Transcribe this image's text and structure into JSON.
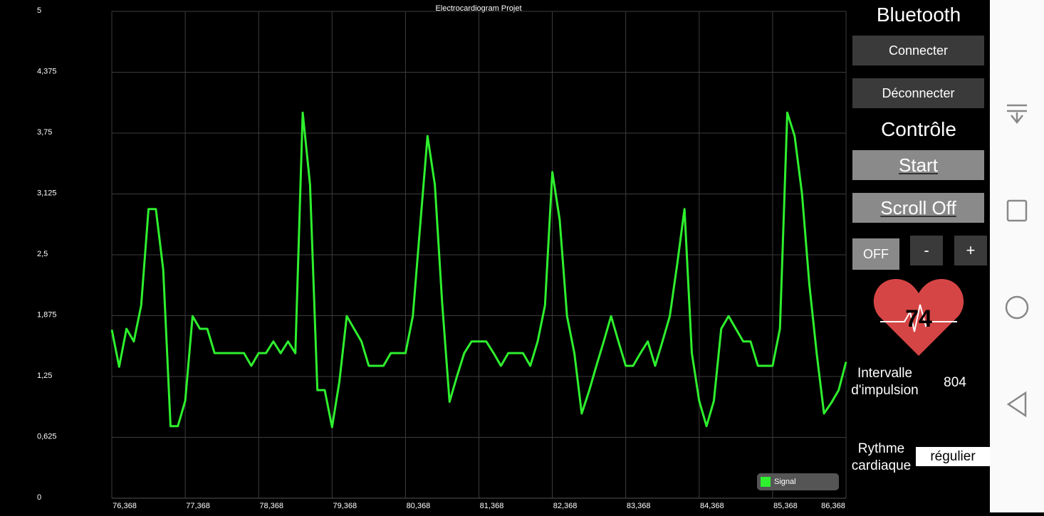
{
  "chart_data": {
    "type": "line",
    "title": "Electrocardiogram Projet",
    "x": [
      76.368,
      76.468,
      76.568,
      76.668,
      76.768,
      76.868,
      76.968,
      77.068,
      77.168,
      77.268,
      77.368,
      77.468,
      77.568,
      77.668,
      77.768,
      77.868,
      77.968,
      78.068,
      78.168,
      78.268,
      78.368,
      78.468,
      78.568,
      78.668,
      78.768,
      78.868,
      78.968,
      79.068,
      79.168,
      79.268,
      79.368,
      79.468,
      79.568,
      79.668,
      79.768,
      79.868,
      79.968,
      80.068,
      80.168,
      80.268,
      80.368,
      80.468,
      80.568,
      80.668,
      80.768,
      80.868,
      80.968,
      81.068,
      81.168,
      81.268,
      81.368,
      81.468,
      81.568,
      81.668,
      81.768,
      81.868,
      81.968,
      82.068,
      82.168,
      82.268,
      82.368,
      82.468,
      82.568,
      82.668,
      82.768,
      82.868,
      82.968,
      83.068,
      83.168,
      83.268,
      83.368,
      83.468,
      83.568,
      83.668,
      83.768,
      83.868,
      83.968,
      84.068,
      84.168,
      84.268,
      84.368,
      84.468,
      84.568,
      84.668,
      84.768,
      84.868,
      84.968,
      85.068,
      85.168,
      85.268,
      85.368,
      85.468,
      85.568,
      85.668,
      85.768,
      85.868,
      85.968,
      86.068,
      86.168,
      86.268,
      86.368
    ],
    "series": [
      {
        "name": "Signal",
        "color": "#2ef02e",
        "values": [
          1.73,
          1.35,
          1.74,
          1.61,
          1.98,
          2.97,
          2.97,
          2.35,
          0.74,
          0.74,
          1.0,
          1.87,
          1.74,
          1.74,
          1.49,
          1.49,
          1.49,
          1.49,
          1.49,
          1.36,
          1.49,
          1.49,
          1.61,
          1.49,
          1.61,
          1.49,
          3.96,
          3.22,
          1.11,
          1.11,
          0.73,
          1.2,
          1.87,
          1.74,
          1.61,
          1.36,
          1.36,
          1.36,
          1.49,
          1.49,
          1.49,
          1.87,
          2.8,
          3.72,
          3.22,
          2.0,
          0.99,
          1.25,
          1.49,
          1.61,
          1.61,
          1.61,
          1.49,
          1.36,
          1.49,
          1.49,
          1.49,
          1.36,
          1.61,
          1.98,
          3.35,
          2.86,
          1.87,
          1.49,
          0.87,
          1.1,
          1.36,
          1.61,
          1.87,
          1.61,
          1.36,
          1.36,
          1.49,
          1.61,
          1.36,
          1.61,
          1.87,
          2.4,
          2.97,
          1.49,
          1.0,
          0.74,
          1.0,
          1.74,
          1.87,
          1.74,
          1.61,
          1.61,
          1.36,
          1.36,
          1.36,
          1.74,
          3.96,
          3.72,
          3.13,
          2.2,
          1.49,
          0.87,
          0.98,
          1.11,
          1.4
        ]
      }
    ],
    "xlim": [
      76.368,
      86.368
    ],
    "xticks": [
      {
        "value": 76.368,
        "label": "76,368"
      },
      {
        "value": 77.368,
        "label": "77,368"
      },
      {
        "value": 78.368,
        "label": "78,368"
      },
      {
        "value": 79.368,
        "label": "79,368"
      },
      {
        "value": 80.368,
        "label": "80,368"
      },
      {
        "value": 81.368,
        "label": "81,368"
      },
      {
        "value": 82.368,
        "label": "82,368"
      },
      {
        "value": 83.368,
        "label": "83,368"
      },
      {
        "value": 84.368,
        "label": "84,368"
      },
      {
        "value": 85.368,
        "label": "85,368"
      },
      {
        "value": 86.368,
        "label": "86,368"
      }
    ],
    "ylim": [
      0,
      5
    ],
    "yticks": [
      0,
      {
        "value": 0.625,
        "label": "0,625"
      },
      {
        "value": 1.25,
        "label": "1,25"
      },
      {
        "value": 1.875,
        "label": "1,875"
      },
      {
        "value": 2.5,
        "label": "2,5"
      },
      {
        "value": 3.125,
        "label": "3,125"
      },
      {
        "value": 3.75,
        "label": "3,75"
      },
      {
        "value": 4.375,
        "label": "4,375"
      },
      5
    ],
    "grid": true,
    "legend": "bottom-right"
  },
  "panel": {
    "bluetooth_title": "Bluetooth",
    "connect": "Connecter",
    "disconnect": "Déconnecter",
    "control_title": "Contrôle",
    "start": "Start",
    "scroll": "Scroll Off",
    "toggle": "OFF",
    "minus": "-",
    "plus": "+",
    "heart_rate": "74",
    "interval_label": "Intervalle d'impulsion",
    "interval_value": "804",
    "rhythm_label": "Rythme cardiaque",
    "rhythm_value": "régulier"
  }
}
